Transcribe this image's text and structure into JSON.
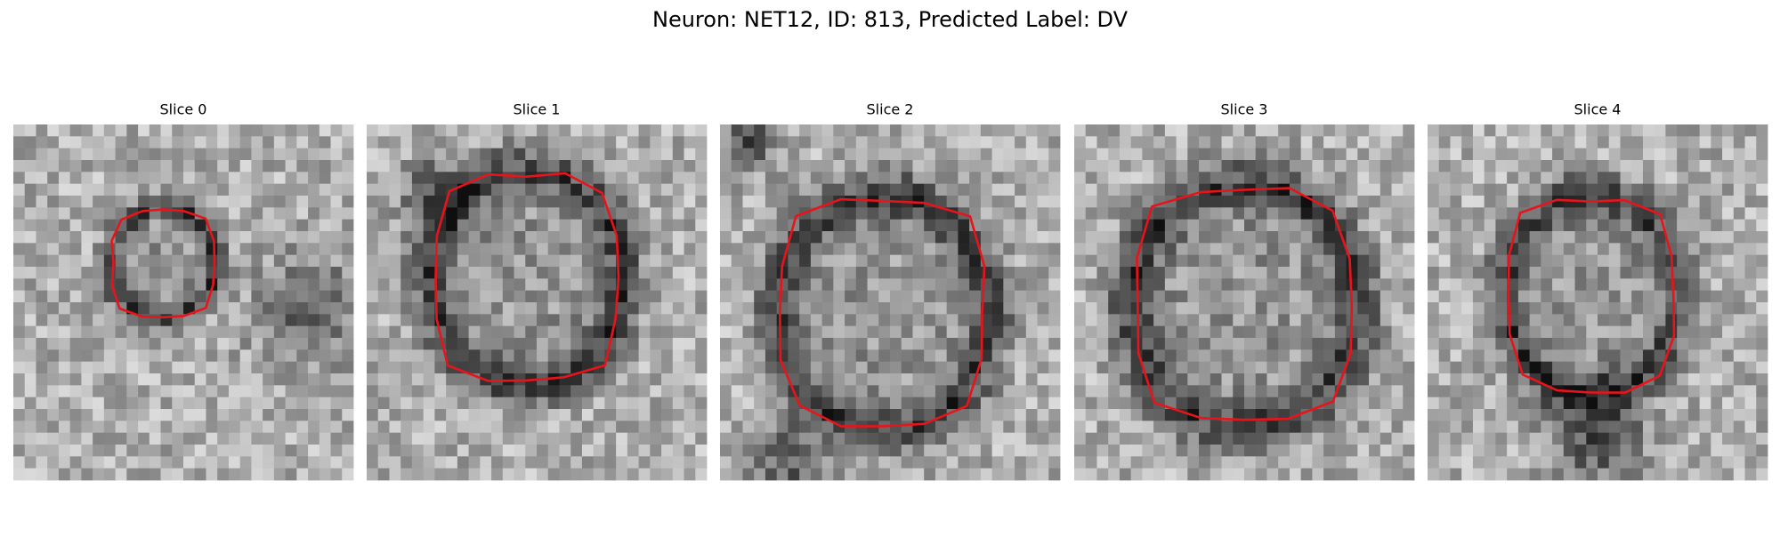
{
  "title": "Neuron: NET12, ID: 813, Predicted Label: DV",
  "panels": [
    {
      "title": "Slice 0"
    },
    {
      "title": "Slice 1"
    },
    {
      "title": "Slice 2"
    },
    {
      "title": "Slice 3"
    },
    {
      "title": "Slice 4"
    }
  ]
}
